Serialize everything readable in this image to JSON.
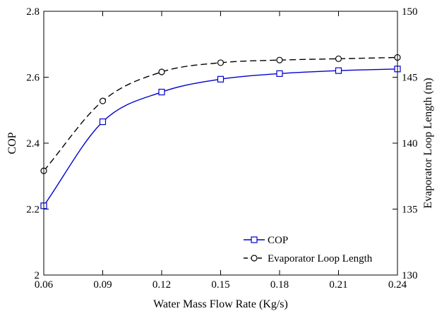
{
  "chart_data": {
    "type": "line",
    "xlabel": "Water Mass Flow Rate (Kg/s)",
    "ylabel": "COP",
    "y2label": "Evaporator Loop Length (m)",
    "xlim": [
      0.06,
      0.24
    ],
    "ylim": [
      2.0,
      2.8
    ],
    "y2lim": [
      130,
      150
    ],
    "xticks": [
      "0.06",
      "0.09",
      "0.12",
      "0.15",
      "0.18",
      "0.21",
      "0.24"
    ],
    "yticks": [
      "2",
      "2.2",
      "2.4",
      "2.6",
      "2.8"
    ],
    "y2ticks": [
      "130",
      "135",
      "140",
      "145",
      "150"
    ],
    "grid": false,
    "legend_position": "bottom-right",
    "series": [
      {
        "name": "COP",
        "axis": "left",
        "color": "#0000cc",
        "line_style": "solid",
        "marker": "square",
        "x": [
          0.06,
          0.09,
          0.12,
          0.15,
          0.18,
          0.21,
          0.24
        ],
        "values": [
          2.21,
          2.465,
          2.555,
          2.594,
          2.611,
          2.62,
          2.625
        ]
      },
      {
        "name": "Evaporator Loop Length",
        "axis": "right",
        "color": "#000000",
        "line_style": "dashed",
        "marker": "circle",
        "x": [
          0.06,
          0.09,
          0.12,
          0.15,
          0.18,
          0.21,
          0.24
        ],
        "values": [
          137.9,
          143.2,
          145.4,
          146.1,
          146.3,
          146.4,
          146.5
        ]
      }
    ]
  }
}
